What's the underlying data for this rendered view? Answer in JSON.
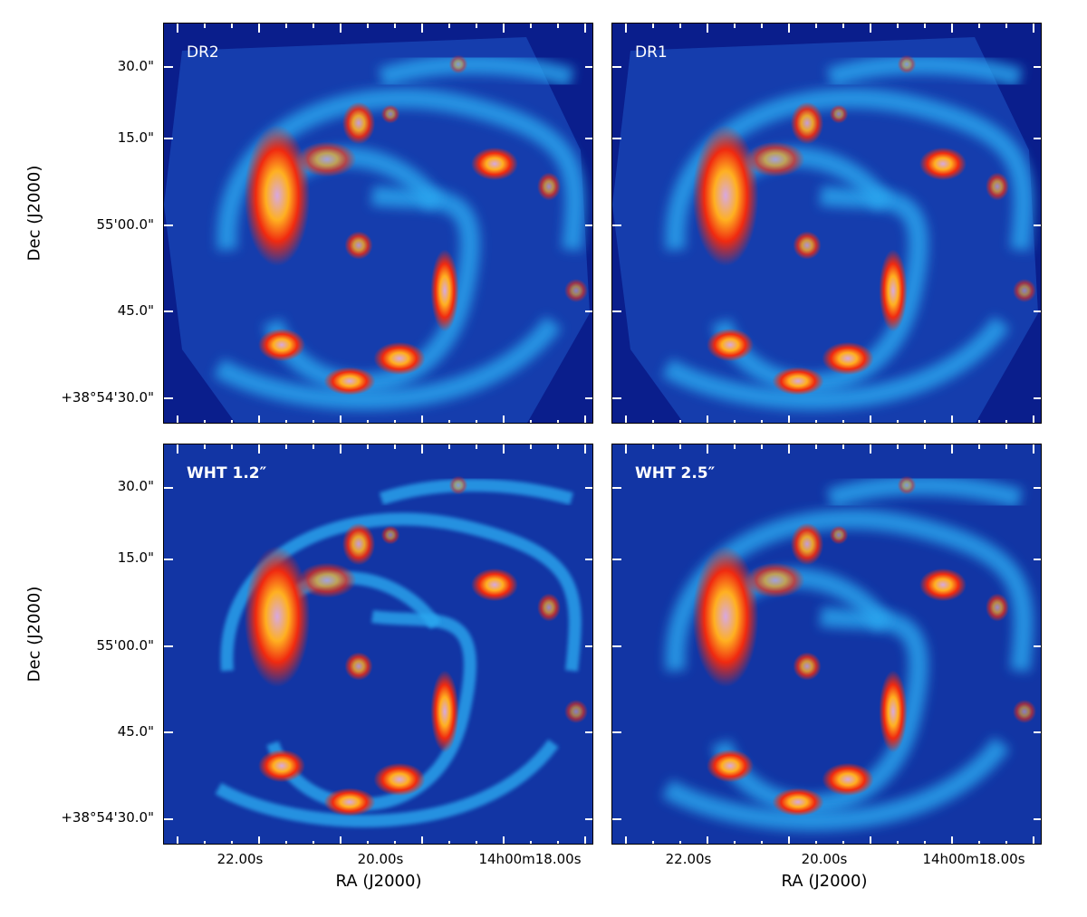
{
  "chart_data": [
    {
      "type": "heatmap",
      "panel": "top-left",
      "label": "DR2",
      "footprint": "octagon"
    },
    {
      "type": "heatmap",
      "panel": "top-right",
      "label": "DR1",
      "footprint": "octagon"
    },
    {
      "type": "heatmap",
      "panel": "bottom-left",
      "label": "WHT 1.2″",
      "footprint": "full"
    },
    {
      "type": "heatmap",
      "panel": "bottom-right",
      "label": "WHT 2.5″",
      "footprint": "full"
    }
  ],
  "axes": {
    "xlabel": "RA (J2000)",
    "ylabel": "Dec (J2000)",
    "xticks": [
      "22.00s",
      "20.00s",
      "14h00m18.00s"
    ],
    "yticks": [
      "30.0\"",
      "15.0\"",
      "55'00.0\"",
      "45.0\"",
      "+38°54'30.0\""
    ]
  },
  "colors": {
    "background": "#0a1e8c",
    "arm": "#2aa8f0",
    "red": "#f02a10",
    "orange": "#ffb020",
    "peak": "#d8a8e0"
  }
}
